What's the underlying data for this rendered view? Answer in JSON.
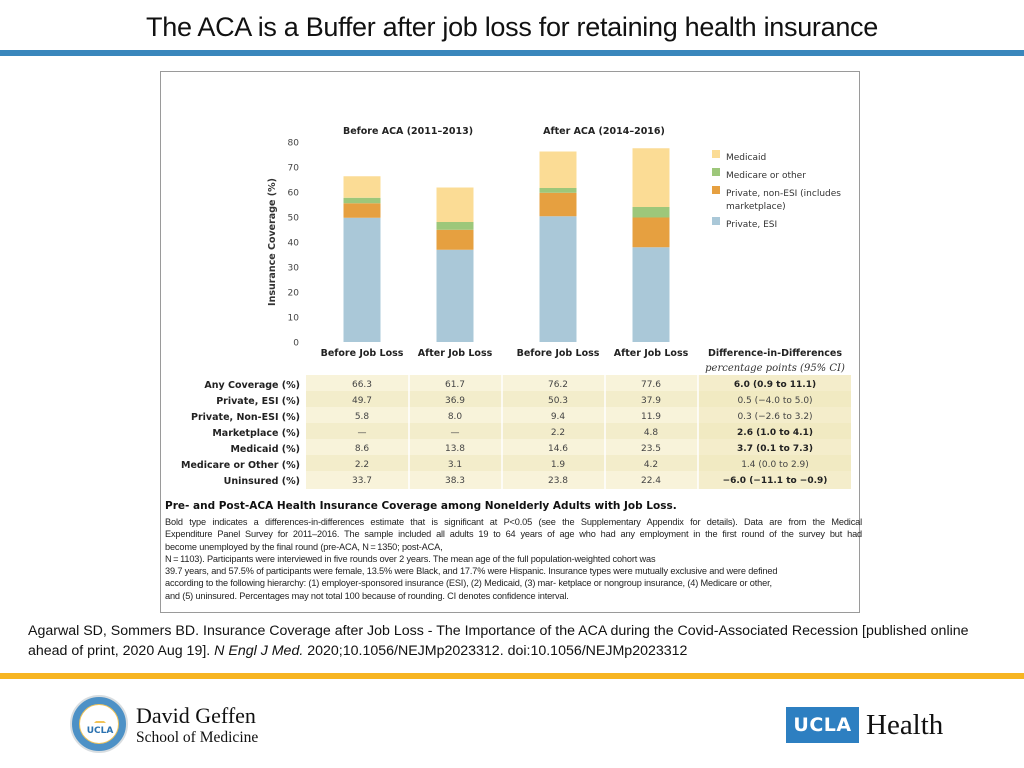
{
  "slide": {
    "title": "The ACA is a Buffer after job loss for retaining health insurance",
    "colors": {
      "title_rule": "#3a87bc",
      "footer_rule": "#f7b522"
    }
  },
  "chart_data": {
    "type": "bar",
    "stacked": true,
    "title": "",
    "group_labels": [
      "Before ACA (2011–2013)",
      "After ACA (2014–2016)"
    ],
    "categories": [
      "Before Job Loss",
      "After Job Loss",
      "Before Job Loss",
      "After Job Loss"
    ],
    "xlabel": "",
    "ylabel": "Insurance Coverage (%)",
    "ylim": [
      0,
      80
    ],
    "yticks": [
      0,
      10,
      20,
      30,
      40,
      50,
      60,
      70,
      80
    ],
    "grid": false,
    "legend_position": "right",
    "series": [
      {
        "name": "Private, ESI",
        "color": "#aac8d8",
        "values": [
          49.7,
          36.9,
          50.3,
          37.9
        ]
      },
      {
        "name": "Private, non-ESI (includes marketplace)",
        "color": "#e6a040",
        "values": [
          5.8,
          8.0,
          9.4,
          11.9
        ]
      },
      {
        "name": "Medicare or other",
        "color": "#9dc77a",
        "values": [
          2.2,
          3.1,
          1.9,
          4.2
        ]
      },
      {
        "name": "Medicaid",
        "color": "#fbdc95",
        "values": [
          8.6,
          13.8,
          14.6,
          23.5
        ]
      }
    ],
    "legend_order": [
      {
        "label": "Medicaid",
        "color": "#fbdc95"
      },
      {
        "label": "Medicare or other",
        "color": "#9dc77a"
      },
      {
        "label": "Private, non-ESI (includes",
        "label2": "marketplace)",
        "color": "#e6a040"
      },
      {
        "label": "Private, ESI",
        "color": "#aac8d8"
      }
    ],
    "table": {
      "diff_header": "Difference-in-Differences",
      "diff_subheader": "percentage points (95% CI)",
      "rows": [
        {
          "label": "Any Coverage (%)",
          "values": [
            "66.3",
            "61.7",
            "76.2",
            "77.6"
          ],
          "diff": "6.0 (0.9 to 11.1)",
          "significant": true
        },
        {
          "label": "Private, ESI (%)",
          "values": [
            "49.7",
            "36.9",
            "50.3",
            "37.9"
          ],
          "diff": "0.5 (−4.0 to 5.0)",
          "significant": false
        },
        {
          "label": "Private, Non-ESI (%)",
          "values": [
            "5.8",
            "8.0",
            "9.4",
            "11.9"
          ],
          "diff": "0.3 (−2.6 to 3.2)",
          "significant": false
        },
        {
          "label": "Marketplace (%)",
          "values": [
            "—",
            "—",
            "2.2",
            "4.8"
          ],
          "diff": "2.6 (1.0 to 4.1)",
          "significant": true
        },
        {
          "label": "Medicaid (%)",
          "values": [
            "8.6",
            "13.8",
            "14.6",
            "23.5"
          ],
          "diff": "3.7 (0.1 to 7.3)",
          "significant": true
        },
        {
          "label": "Medicare or Other (%)",
          "values": [
            "2.2",
            "3.1",
            "1.9",
            "4.2"
          ],
          "diff": "1.4 (0.0 to 2.9)",
          "significant": false
        },
        {
          "label": "Uninsured (%)",
          "values": [
            "33.7",
            "38.3",
            "23.8",
            "22.4"
          ],
          "diff": "−6.0 (−11.1 to −0.9)",
          "significant": true
        }
      ]
    }
  },
  "caption": {
    "title": "Pre- and Post-ACA Health Insurance Coverage among Nonelderly Adults with Job Loss.",
    "lines": [
      "Bold type indicates a differences-in-differences estimate that is significant at P<0.05 (see the Supplementary Appendix for details). Data are from the Medical",
      "Expenditure Panel Survey for 2011–2016. The sample included all adults 19 to 64 years of age who had any employment in the first round of the survey but had",
      "become unemployed by the final round (pre-ACA, N = 1350; post-ACA,",
      "N = 1103). Participants were interviewed in five rounds over 2 years. The mean age of the full population-weighted cohort was",
      "39.7 years, and 57.5% of participants were female, 13.5% were Black, and 17.7% were Hispanic. Insurance types were mutually exclusive and were defined",
      "according to the following hierarchy: (1) employer-sponsored insurance (ESI), (2) Medicaid, (3) mar- ketplace or nongroup insurance, (4) Medicare or other,",
      "and (5) uninsured. Percentages may not total 100 because of rounding. CI denotes confidence interval."
    ]
  },
  "citation": {
    "text_before": "Agarwal SD, Sommers BD. Insurance Coverage after Job Loss - The Importance of the ACA during the Covid-Associated Recession [published online ahead of print, 2020 Aug 19]. ",
    "journal": "N Engl J Med.",
    "text_after": " 2020;10.1056/NEJMp2023312. doi:10.1056/NEJMp2023312"
  },
  "footer": {
    "left_logo": {
      "seal_text": "UCLA",
      "line1": "David Geffen",
      "line2": "School of Medicine"
    },
    "right_logo": {
      "box_text": "UCLA",
      "word": "Health"
    }
  }
}
